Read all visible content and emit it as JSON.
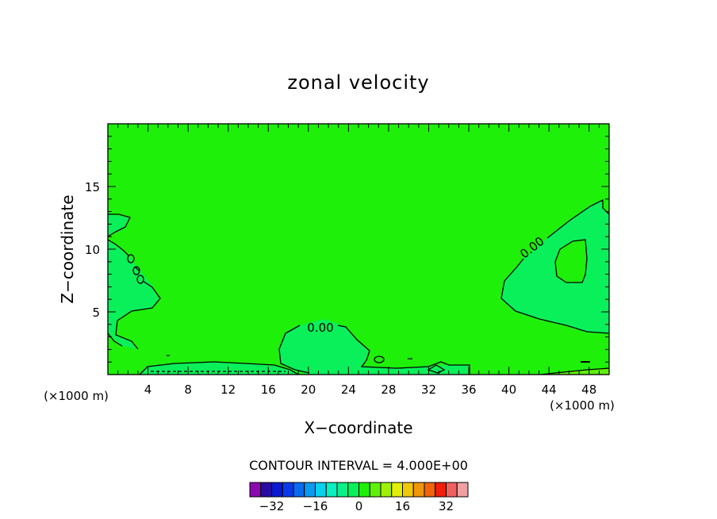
{
  "chart_data": {
    "type": "heatmap",
    "title": "zonal velocity",
    "xlabel": "X−coordinate",
    "ylabel": "Z−coordinate",
    "x_unit_left": "(×1000 m)",
    "x_unit_right": "(×1000 m)",
    "xlim": [
      0,
      50
    ],
    "ylim": [
      0,
      20
    ],
    "x_ticks": [
      4,
      8,
      12,
      16,
      20,
      24,
      28,
      32,
      36,
      40,
      44,
      48
    ],
    "x_tick_labels": [
      "4",
      "8",
      "12",
      "16",
      "20",
      "24",
      "28",
      "32",
      "36",
      "40",
      "44",
      "48"
    ],
    "y_ticks": [
      5,
      10,
      15
    ],
    "y_tick_labels": [
      "5",
      "10",
      "15"
    ],
    "contour_interval_label": "CONTOUR INTERVAL = 4.000E+00",
    "contour_labels": [
      "0.00",
      "0.00"
    ],
    "background_level": "0 to 4",
    "colorbar": {
      "levels": [
        -36,
        -32,
        -28,
        -24,
        -20,
        -16,
        -12,
        -8,
        -4,
        0,
        4,
        8,
        12,
        16,
        20,
        24,
        28,
        32,
        36
      ],
      "colors": [
        "#8a0ab0",
        "#2a0aa0",
        "#0a1ad0",
        "#0a3ae8",
        "#0a6af0",
        "#0a9af0",
        "#0ad0f0",
        "#0af0c0",
        "#0af08a",
        "#0af05a",
        "#1ef00a",
        "#60f00a",
        "#a0f00a",
        "#e0f00a",
        "#f0c80a",
        "#f0960a",
        "#f0640a",
        "#f01e0a",
        "#f06060",
        "#f0a0a0"
      ],
      "tick_values": [
        -32,
        -16,
        0,
        16,
        32
      ],
      "tick_labels": [
        "−32",
        "−16",
        "0",
        "16",
        "32"
      ]
    }
  }
}
